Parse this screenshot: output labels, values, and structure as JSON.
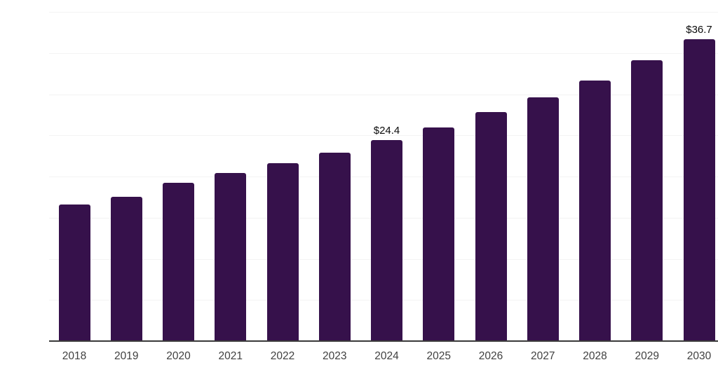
{
  "chart_data": {
    "type": "bar",
    "categories": [
      "2018",
      "2019",
      "2020",
      "2021",
      "2022",
      "2023",
      "2024",
      "2025",
      "2026",
      "2027",
      "2028",
      "2029",
      "2030"
    ],
    "values": [
      16.6,
      17.5,
      19.2,
      20.4,
      21.6,
      22.9,
      24.4,
      26.0,
      27.8,
      29.6,
      31.7,
      34.1,
      36.7
    ],
    "value_labels": [
      {
        "category": "2024",
        "text": "$24.4"
      },
      {
        "category": "2030",
        "text": "$36.7"
      }
    ],
    "title": "",
    "xlabel": "",
    "ylabel": "",
    "ylim": [
      0,
      40
    ],
    "grid_step": 5,
    "grid": "horizontal",
    "legend_position": "none",
    "y_axis_labels_visible": false,
    "colors": {
      "bar": "#36114B",
      "grid": "#f3f3f3",
      "axis": "#3a3a3a",
      "tick_label": "#404040",
      "value_label": "#0a0a0a",
      "background": "#ffffff"
    }
  }
}
